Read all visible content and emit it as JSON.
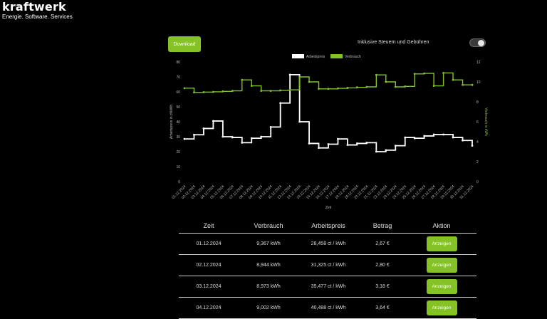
{
  "brand": {
    "name": "kraftwerk",
    "tagline": "Energie. Software. Services"
  },
  "toolbar": {
    "download_label": "Download",
    "tax_label": "Inklusive Steuern und Gebühren",
    "tax_toggle_on": true
  },
  "colors": {
    "accent": "#84c225",
    "price_line": "#ffffff",
    "consumption_line": "#84c225"
  },
  "chart_data": {
    "type": "line",
    "step": true,
    "categories": [
      "01.12.2024",
      "02.12.2024",
      "03.12.2024",
      "04.12.2024",
      "05.12.2024",
      "06.12.2024",
      "07.12.2024",
      "08.12.2024",
      "09.12.2024",
      "10.12.2024",
      "11.12.2024",
      "12.12.2024",
      "13.12.2024",
      "14.12.2024",
      "15.12.2024",
      "16.12.2024",
      "17.12.2024",
      "18.12.2024",
      "19.12.2024",
      "20.12.2024",
      "21.12.2024",
      "22.12.2024",
      "23.12.2024",
      "24.12.2024",
      "25.12.2024",
      "26.12.2024",
      "27.12.2024",
      "28.12.2024",
      "29.12.2024",
      "30.12.2024",
      "31.12.2024"
    ],
    "series": [
      {
        "name": "Arbeitspreis",
        "axis": "left",
        "values": [
          28.5,
          31.3,
          35.5,
          40.5,
          30.0,
          29.5,
          26.0,
          29.0,
          30.0,
          36.5,
          52.5,
          71.5,
          40.0,
          25.5,
          22.5,
          25.0,
          28.5,
          24.5,
          25.5,
          26.0,
          20.0,
          21.0,
          24.0,
          29.5,
          29.0,
          30.5,
          31.5,
          31.5,
          29.5,
          27.5,
          24.0
        ]
      },
      {
        "name": "Verbrauch",
        "axis": "right",
        "values": [
          9.367,
          8.944,
          8.973,
          9.002,
          9.05,
          9.1,
          10.2,
          9.6,
          9.1,
          9.1,
          9.15,
          9.2,
          10.5,
          10.0,
          9.3,
          9.3,
          9.35,
          9.4,
          9.45,
          9.5,
          10.7,
          10.0,
          9.5,
          9.55,
          10.8,
          10.85,
          9.6,
          10.9,
          10.2,
          9.7,
          9.7
        ]
      }
    ],
    "xlabel": "Zeit",
    "ylabel_left": "Arbeitspreis in ct/kWh",
    "ylabel_right": "Verbrauch in kWh",
    "ylim_left": [
      0,
      80
    ],
    "ylim_right": [
      0,
      12
    ],
    "yticks_left": [
      "80",
      "70",
      "60",
      "50",
      "40",
      "30",
      "20",
      "10",
      "0"
    ],
    "yticks_right": [
      "12",
      "10",
      "8",
      "6",
      "4",
      "2",
      "0"
    ],
    "legend": "top-center",
    "grid": false
  },
  "table": {
    "headers": [
      "Zeit",
      "Verbrauch",
      "Arbeitspreis",
      "Betrag",
      "Aktion"
    ],
    "rows": [
      {
        "date": "01.12.2024",
        "consumption": "9,367 kWh",
        "price": "28,458 ct / kWh",
        "amount": "2,67 €",
        "action": "Anzeigen"
      },
      {
        "date": "02.12.2024",
        "consumption": "8,944 kWh",
        "price": "31,325 ct / kWh",
        "amount": "2,80 €",
        "action": "Anzeigen"
      },
      {
        "date": "03.12.2024",
        "consumption": "8,973 kWh",
        "price": "35,477 ct / kWh",
        "amount": "3,18 €",
        "action": "Anzeigen"
      },
      {
        "date": "04.12.2024",
        "consumption": "9,002 kWh",
        "price": "40,488 ct / kWh",
        "amount": "3,64 €",
        "action": "Anzeigen"
      }
    ]
  }
}
